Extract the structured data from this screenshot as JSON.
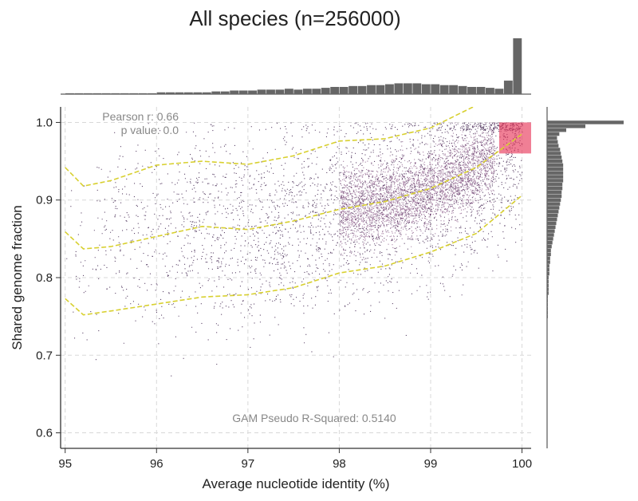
{
  "chart_data": {
    "type": "scatter",
    "title": "All species (n=256000)",
    "xlabel": "Average nucleotide identity (%)",
    "ylabel": "Shared genome fraction",
    "xlim": [
      94.95,
      100.1
    ],
    "ylim": [
      0.58,
      1.02
    ],
    "xticks": [
      95,
      96,
      97,
      98,
      99,
      100
    ],
    "yticks": [
      0.6,
      0.7,
      0.8,
      0.9,
      1.0
    ],
    "xtick_labels": [
      "95",
      "96",
      "97",
      "98",
      "99",
      "100"
    ],
    "ytick_labels": [
      "0.6",
      "0.7",
      "0.8",
      "0.9",
      "1.0"
    ],
    "grid": true,
    "annotations": {
      "pearson": "Pearson r: 0.66",
      "pvalue": "p value: 0.0",
      "gam": "GAM Pseudo R-Squared: 0.5140"
    },
    "colors": {
      "points": "#2a0a3a",
      "dense": "#5c1a5a",
      "hot": "#e83a5c",
      "fit": "#d8d030",
      "hist": "#666666"
    },
    "fit_lines": [
      {
        "x": [
          95.0,
          95.2,
          95.5,
          96.0,
          96.5,
          97.0,
          97.5,
          98.0,
          98.5,
          99.0,
          99.5,
          100.0
        ],
        "y": [
          0.773,
          0.752,
          0.757,
          0.766,
          0.775,
          0.778,
          0.787,
          0.806,
          0.815,
          0.833,
          0.857,
          0.906
        ]
      },
      {
        "x": [
          95.0,
          95.2,
          95.5,
          96.0,
          96.5,
          97.0,
          97.5,
          98.0,
          98.5,
          99.0,
          99.5,
          100.0
        ],
        "y": [
          0.859,
          0.837,
          0.84,
          0.853,
          0.866,
          0.862,
          0.873,
          0.888,
          0.898,
          0.915,
          0.942,
          0.985
        ]
      },
      {
        "x": [
          95.0,
          95.2,
          95.5,
          96.0,
          96.5,
          97.0,
          97.5,
          98.0,
          98.5,
          99.0,
          99.5
        ],
        "y": [
          0.942,
          0.918,
          0.925,
          0.945,
          0.95,
          0.946,
          0.957,
          0.976,
          0.979,
          0.993,
          1.022
        ]
      }
    ],
    "x_histogram": {
      "bin_centers": [
        95.05,
        95.15,
        95.25,
        95.35,
        95.45,
        95.55,
        95.65,
        95.75,
        95.85,
        95.95,
        96.05,
        96.15,
        96.25,
        96.35,
        96.45,
        96.55,
        96.65,
        96.75,
        96.85,
        96.95,
        97.05,
        97.15,
        97.25,
        97.35,
        97.45,
        97.55,
        97.65,
        97.75,
        97.85,
        97.95,
        98.05,
        98.15,
        98.25,
        98.35,
        98.45,
        98.55,
        98.65,
        98.75,
        98.85,
        98.95,
        99.05,
        99.15,
        99.25,
        99.35,
        99.45,
        99.55,
        99.65,
        99.75,
        99.85,
        99.95
      ],
      "counts": [
        1,
        1,
        1,
        1,
        1,
        1,
        1,
        1,
        1,
        1,
        2,
        2,
        2,
        2,
        2,
        2,
        3,
        3,
        4,
        4,
        4,
        5,
        5,
        5,
        6,
        5,
        6,
        6,
        7,
        8,
        8,
        9,
        9,
        10,
        10,
        11,
        12,
        12,
        12,
        11,
        11,
        10,
        10,
        9,
        8,
        8,
        7,
        6,
        15,
        62
      ]
    },
    "y_histogram": {
      "bin_centers": [
        1.0,
        0.995,
        0.99,
        0.985,
        0.98,
        0.975,
        0.97,
        0.965,
        0.96,
        0.955,
        0.95,
        0.945,
        0.94,
        0.935,
        0.93,
        0.925,
        0.92,
        0.915,
        0.91,
        0.905,
        0.9,
        0.895,
        0.89,
        0.885,
        0.88,
        0.875,
        0.87,
        0.865,
        0.86,
        0.855,
        0.85,
        0.845,
        0.84,
        0.835,
        0.83,
        0.825,
        0.82,
        0.815,
        0.81,
        0.805,
        0.8,
        0.795,
        0.79,
        0.785,
        0.78,
        0.775,
        0.77,
        0.765,
        0.76,
        0.755,
        0.75
      ],
      "counts": [
        100,
        50,
        25,
        16,
        13,
        14,
        15,
        17,
        18,
        19,
        20,
        21,
        21,
        21,
        21,
        21,
        20,
        20,
        19,
        19,
        18,
        17,
        16,
        15,
        14,
        13,
        12,
        11,
        10,
        9,
        8,
        7,
        6,
        5,
        5,
        4,
        4,
        3,
        3,
        3,
        2,
        2,
        2,
        2,
        2,
        1,
        1,
        1,
        1,
        1,
        1
      ]
    }
  }
}
